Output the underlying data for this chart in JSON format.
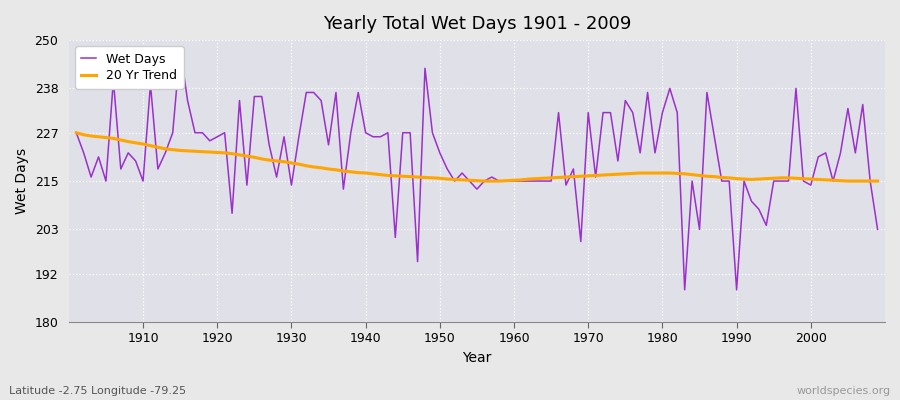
{
  "title": "Yearly Total Wet Days 1901 - 2009",
  "xlabel": "Year",
  "ylabel": "Wet Days",
  "subtitle_left": "Latitude -2.75 Longitude -79.25",
  "subtitle_right": "worldspecies.org",
  "legend_labels": [
    "Wet Days",
    "20 Yr Trend"
  ],
  "line_color_wet": "#9B30CC",
  "line_color_trend": "#FFA500",
  "bg_color": "#E0E0E8",
  "fig_color": "#E8E8E8",
  "ylim": [
    180,
    250
  ],
  "yticks": [
    180,
    192,
    203,
    215,
    227,
    238,
    250
  ],
  "xticks": [
    1910,
    1920,
    1930,
    1940,
    1950,
    1960,
    1970,
    1980,
    1990,
    2000
  ],
  "years": [
    1901,
    1902,
    1903,
    1904,
    1905,
    1906,
    1907,
    1908,
    1909,
    1910,
    1911,
    1912,
    1913,
    1914,
    1915,
    1916,
    1917,
    1918,
    1919,
    1920,
    1921,
    1922,
    1923,
    1924,
    1925,
    1926,
    1927,
    1928,
    1929,
    1930,
    1931,
    1932,
    1933,
    1934,
    1935,
    1936,
    1937,
    1938,
    1939,
    1940,
    1941,
    1942,
    1943,
    1944,
    1945,
    1946,
    1947,
    1948,
    1949,
    1950,
    1951,
    1952,
    1953,
    1954,
    1955,
    1956,
    1957,
    1958,
    1959,
    1960,
    1961,
    1962,
    1963,
    1964,
    1965,
    1966,
    1967,
    1968,
    1969,
    1970,
    1971,
    1972,
    1973,
    1974,
    1975,
    1976,
    1977,
    1978,
    1979,
    1980,
    1981,
    1982,
    1983,
    1984,
    1985,
    1986,
    1987,
    1988,
    1989,
    1990,
    1991,
    1992,
    1993,
    1994,
    1995,
    1996,
    1997,
    1998,
    1999,
    2000,
    2001,
    2002,
    2003,
    2004,
    2005,
    2006,
    2007,
    2008,
    2009
  ],
  "wet_days": [
    227,
    222,
    216,
    221,
    215,
    240,
    218,
    222,
    220,
    215,
    239,
    218,
    222,
    227,
    248,
    235,
    227,
    227,
    225,
    226,
    227,
    207,
    235,
    214,
    236,
    236,
    224,
    216,
    226,
    214,
    226,
    237,
    237,
    235,
    224,
    237,
    213,
    227,
    237,
    227,
    226,
    226,
    227,
    201,
    227,
    227,
    195,
    243,
    227,
    222,
    218,
    215,
    217,
    215,
    213,
    215,
    216,
    215,
    215,
    215,
    215,
    215,
    215,
    215,
    215,
    232,
    214,
    218,
    200,
    232,
    216,
    232,
    232,
    220,
    235,
    232,
    222,
    237,
    222,
    232,
    238,
    232,
    188,
    215,
    203,
    237,
    226,
    215,
    215,
    188,
    215,
    210,
    208,
    204,
    215,
    215,
    215,
    238,
    215,
    214,
    221,
    222,
    215,
    222,
    233,
    222,
    234,
    215,
    203
  ],
  "trend": [
    227,
    226.5,
    226.2,
    226.0,
    225.8,
    225.6,
    225.2,
    224.8,
    224.5,
    224.2,
    223.8,
    223.4,
    223.0,
    222.8,
    222.6,
    222.5,
    222.4,
    222.3,
    222.2,
    222.1,
    222.0,
    221.8,
    221.5,
    221.2,
    220.9,
    220.5,
    220.2,
    220.0,
    219.8,
    219.5,
    219.2,
    218.8,
    218.5,
    218.3,
    218.0,
    217.8,
    217.5,
    217.3,
    217.1,
    217.0,
    216.8,
    216.6,
    216.4,
    216.3,
    216.2,
    216.1,
    216.0,
    215.9,
    215.8,
    215.7,
    215.5,
    215.4,
    215.3,
    215.2,
    215.1,
    215.0,
    215.0,
    215.0,
    215.1,
    215.2,
    215.3,
    215.5,
    215.6,
    215.7,
    215.8,
    215.9,
    216.0,
    216.1,
    216.2,
    216.3,
    216.4,
    216.5,
    216.6,
    216.7,
    216.8,
    216.9,
    217.0,
    217.0,
    217.0,
    217.0,
    217.0,
    216.9,
    216.8,
    216.6,
    216.4,
    216.2,
    216.1,
    215.9,
    215.8,
    215.6,
    215.5,
    215.4,
    215.5,
    215.6,
    215.7,
    215.8,
    215.8,
    215.7,
    215.6,
    215.5,
    215.4,
    215.3,
    215.2,
    215.1,
    215.0,
    215.0,
    215.0,
    215.0,
    215.0
  ]
}
